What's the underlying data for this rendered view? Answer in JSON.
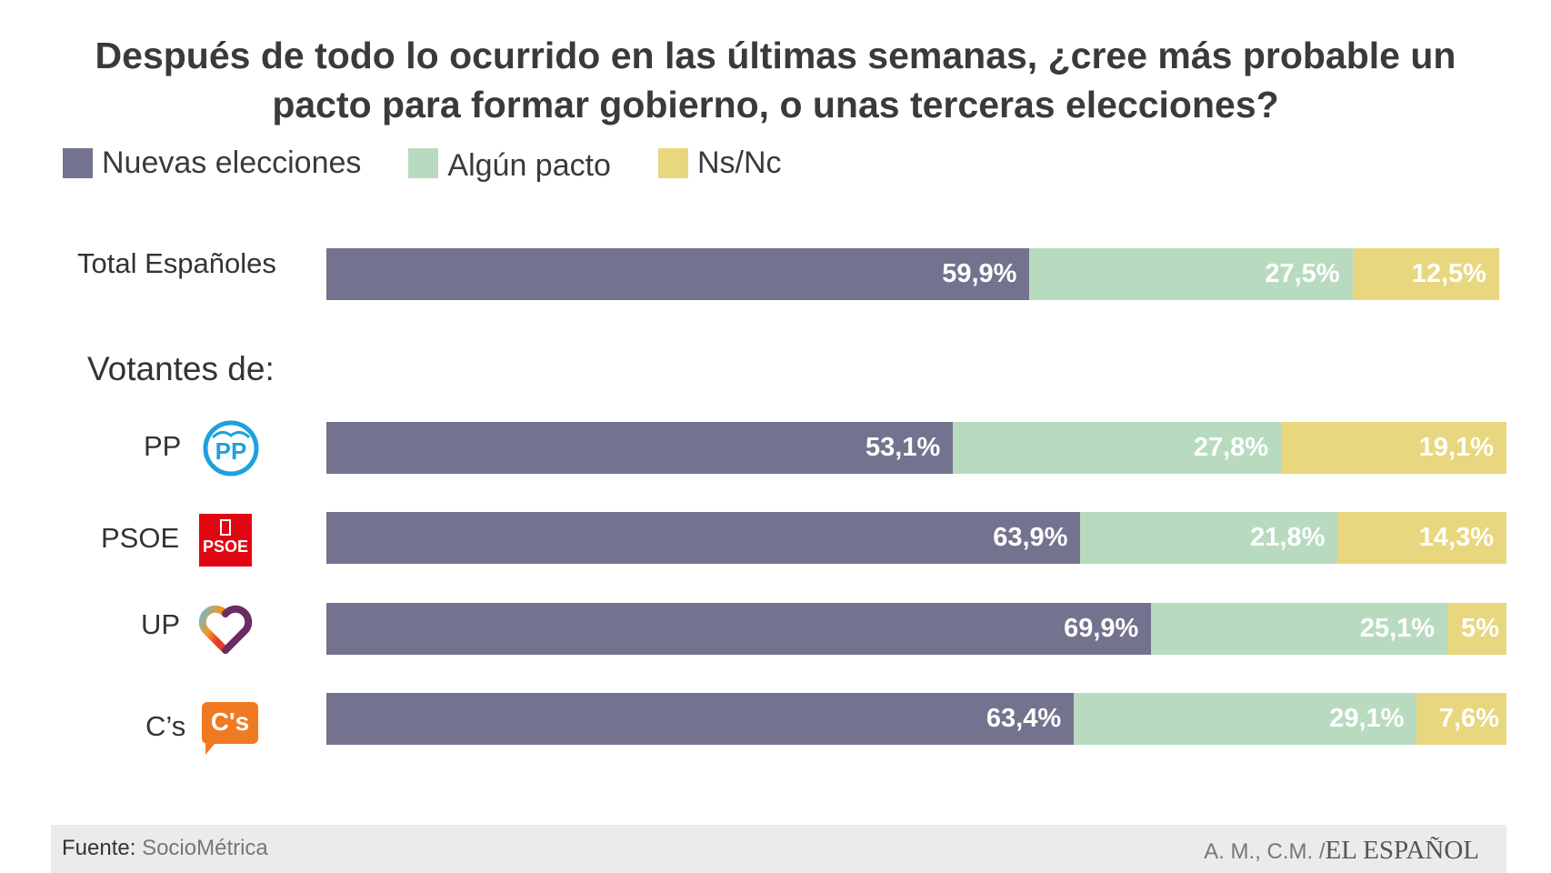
{
  "chart_data": {
    "type": "bar",
    "stacked": true,
    "orientation": "horizontal",
    "title": "Después de todo lo ocurrido en las últimas semanas, ¿cree más probable un pacto para formar gobierno, o unas terceras elecciones?",
    "title_lines": [
      "Después de todo lo ocurrido en las últimas semanas, ¿cree más probable un",
      "pacto para formar gobierno, o unas terceras elecciones?"
    ],
    "section_label": "Votantes de:",
    "categories": [
      "Total Españoles",
      "PP",
      "PSOE",
      "UP",
      "C’s"
    ],
    "series": [
      {
        "name": "Nuevas elecciones",
        "color": "#73728f",
        "values": [
          59.9,
          53.1,
          63.9,
          69.9,
          63.4
        ],
        "labels": [
          "59,9%",
          "53,1%",
          "63,9%",
          "69,9%",
          "63,4%"
        ]
      },
      {
        "name": "Algún pacto",
        "color": "#b8dbbf",
        "values": [
          27.5,
          27.8,
          21.8,
          25.1,
          29.1
        ],
        "labels": [
          "27,5%",
          "27,8%",
          "21,8%",
          "25,1%",
          "29,1%"
        ]
      },
      {
        "name": "Ns/Nc",
        "color": "#e8d77e",
        "values": [
          12.5,
          19.1,
          14.3,
          5,
          7.6
        ],
        "labels": [
          "12,5%",
          "19,1%",
          "14,3%",
          "5%",
          "7,6%"
        ]
      }
    ],
    "legend_position": "top-left",
    "grid": false
  },
  "logos": {
    "pp": "PP",
    "psoe": "PSOE",
    "cs": "C's"
  },
  "footer": {
    "source_label": "Fuente:",
    "source": "SocioMétrica",
    "credit": "A. M., C.M. /",
    "brand": "EL ESPAÑOL"
  }
}
